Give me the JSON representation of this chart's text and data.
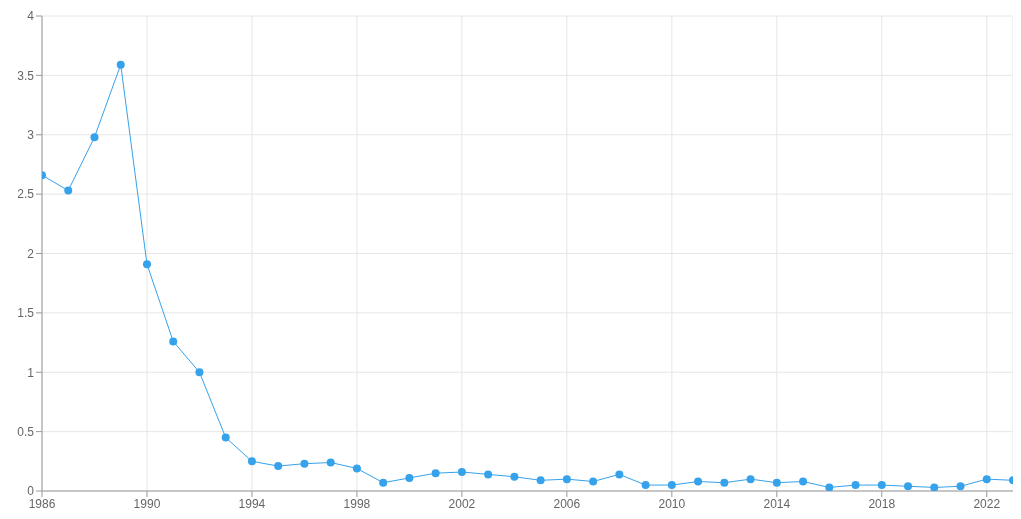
{
  "chart_data": {
    "type": "line",
    "x": [
      1986,
      1987,
      1988,
      1989,
      1990,
      1991,
      1992,
      1993,
      1994,
      1995,
      1996,
      1997,
      1998,
      1999,
      2000,
      2001,
      2002,
      2003,
      2004,
      2005,
      2006,
      2007,
      2008,
      2009,
      2010,
      2011,
      2012,
      2013,
      2014,
      2015,
      2016,
      2017,
      2018,
      2019,
      2020,
      2021,
      2022,
      2023
    ],
    "series": [
      {
        "color": "#36a2eb",
        "values": [
          2.66,
          2.53,
          2.98,
          3.59,
          1.91,
          1.26,
          1.0,
          0.45,
          0.25,
          0.21,
          0.23,
          0.24,
          0.19,
          0.07,
          0.11,
          0.15,
          0.16,
          0.14,
          0.12,
          0.09,
          0.1,
          0.08,
          0.14,
          0.05,
          0.05,
          0.08,
          0.07,
          0.1,
          0.07,
          0.08,
          0.03,
          0.05,
          0.05,
          0.04,
          0.03,
          0.04,
          0.1,
          0.09
        ]
      }
    ],
    "xlim": [
      1986,
      2023
    ],
    "xticks": [
      1986,
      1990,
      1994,
      1998,
      2002,
      2006,
      2010,
      2014,
      2018,
      2022
    ],
    "ylim": [
      0,
      4
    ],
    "yticks": [
      0,
      0.5,
      1,
      1.5,
      2,
      2.5,
      3,
      3.5,
      4
    ],
    "grid": true,
    "marker": "circle",
    "line_style": "solid"
  }
}
